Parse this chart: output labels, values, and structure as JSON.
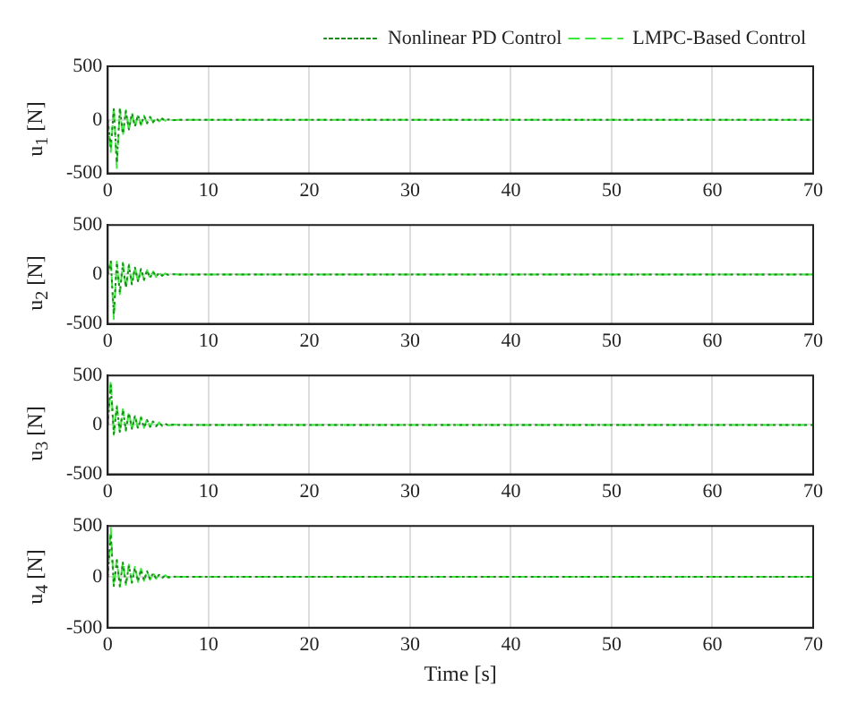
{
  "chart_data": [
    {
      "type": "line",
      "ylabel": "u$_{1}$ [N]",
      "x": [
        0,
        0.3,
        0.6,
        0.9,
        1.2,
        1.5,
        1.8,
        2.1,
        2.4,
        2.7,
        3.0,
        3.3,
        3.6,
        3.9,
        4.2,
        4.5,
        4.8,
        5.1,
        5.4,
        5.7,
        6.0,
        6.5,
        7,
        70
      ],
      "xlim": [
        0,
        70
      ],
      "xticks": [
        0,
        10,
        20,
        30,
        40,
        50,
        60,
        70
      ],
      "ylim": [
        -500,
        500
      ],
      "yticks": [
        -500,
        0,
        500
      ],
      "grid": true,
      "legend": "top right",
      "series": [
        {
          "name": "Nonlinear PD Control",
          "color": "#1a8c1a",
          "line_style": "dotted",
          "values": [
            0,
            -250,
            100,
            -400,
            110,
            -130,
            80,
            -90,
            60,
            -60,
            45,
            -45,
            35,
            -30,
            25,
            -20,
            15,
            -12,
            10,
            -6,
            4,
            -2,
            0,
            0
          ]
        },
        {
          "name": "LMPC-Based Control",
          "color": "#3de83d",
          "line_style": "dashed",
          "values": [
            0,
            -300,
            120,
            -450,
            100,
            -150,
            90,
            -100,
            70,
            -70,
            50,
            -50,
            40,
            -35,
            30,
            -25,
            20,
            -15,
            12,
            -8,
            5,
            -3,
            0,
            0
          ]
        }
      ]
    },
    {
      "type": "line",
      "ylabel": "u$_{2}$ [N]",
      "x": [
        0,
        0.3,
        0.6,
        0.9,
        1.2,
        1.5,
        1.8,
        2.1,
        2.4,
        2.7,
        3.0,
        3.3,
        3.6,
        3.9,
        4.2,
        4.5,
        4.8,
        5.1,
        5.4,
        5.7,
        6.0,
        6.5,
        7,
        70
      ],
      "xlim": [
        0,
        70
      ],
      "xticks": [
        0,
        10,
        20,
        30,
        40,
        50,
        60,
        70
      ],
      "ylim": [
        -500,
        500
      ],
      "yticks": [
        -500,
        0,
        500
      ],
      "grid": true,
      "series": [
        {
          "color": "#1a8c1a",
          "line_style": "dotted",
          "values": [
            0,
            130,
            -400,
            120,
            -180,
            110,
            -130,
            90,
            -100,
            70,
            -70,
            55,
            -50,
            40,
            -35,
            25,
            -20,
            15,
            -12,
            8,
            -5,
            2,
            0,
            0
          ]
        },
        {
          "color": "#3de83d",
          "line_style": "dashed",
          "values": [
            0,
            150,
            -450,
            130,
            -200,
            120,
            -150,
            100,
            -110,
            80,
            -80,
            60,
            -60,
            45,
            -40,
            30,
            -25,
            20,
            -15,
            10,
            -6,
            3,
            0,
            0
          ]
        }
      ]
    },
    {
      "type": "line",
      "ylabel": "u$_{3}$ [N]",
      "x": [
        0,
        0.3,
        0.6,
        0.9,
        1.2,
        1.5,
        1.8,
        2.1,
        2.4,
        2.7,
        3.0,
        3.3,
        3.6,
        3.9,
        4.2,
        4.5,
        4.8,
        5.1,
        5.4,
        5.7,
        6.0,
        6.5,
        7,
        70
      ],
      "xlim": [
        0,
        70
      ],
      "xticks": [
        0,
        10,
        20,
        30,
        40,
        50,
        60,
        70
      ],
      "ylim": [
        -500,
        500
      ],
      "yticks": [
        -500,
        0,
        500
      ],
      "grid": true,
      "series": [
        {
          "color": "#1a8c1a",
          "line_style": "dotted",
          "values": [
            0,
            400,
            -90,
            180,
            -70,
            150,
            -50,
            120,
            -40,
            90,
            -35,
            70,
            -25,
            50,
            -18,
            35,
            -12,
            20,
            -8,
            12,
            -4,
            2,
            0,
            0
          ]
        },
        {
          "color": "#3de83d",
          "line_style": "dashed",
          "values": [
            0,
            450,
            -100,
            200,
            -80,
            160,
            -60,
            130,
            -50,
            100,
            -40,
            80,
            -30,
            60,
            -20,
            40,
            -15,
            25,
            -10,
            15,
            -5,
            3,
            0,
            0
          ]
        }
      ]
    },
    {
      "type": "line",
      "ylabel": "u$_{4}$ [N]",
      "xlabel": "Time [s]",
      "x": [
        0,
        0.3,
        0.6,
        0.9,
        1.2,
        1.5,
        1.8,
        2.1,
        2.4,
        2.7,
        3.0,
        3.3,
        3.6,
        3.9,
        4.2,
        4.5,
        4.8,
        5.1,
        5.4,
        5.7,
        6.0,
        6.5,
        7,
        70
      ],
      "xlim": [
        0,
        70
      ],
      "xticks": [
        0,
        10,
        20,
        30,
        40,
        50,
        60,
        70
      ],
      "ylim": [
        -500,
        500
      ],
      "yticks": [
        -500,
        0,
        500
      ],
      "grid": true,
      "series": [
        {
          "color": "#1a8c1a",
          "line_style": "dotted",
          "values": [
            0,
            420,
            -90,
            160,
            -90,
            140,
            -70,
            110,
            -55,
            90,
            -45,
            70,
            -35,
            55,
            -25,
            35,
            -18,
            20,
            -10,
            12,
            -5,
            2,
            0,
            0
          ]
        },
        {
          "color": "#3de83d",
          "line_style": "dashed",
          "values": [
            0,
            480,
            -100,
            170,
            -100,
            150,
            -80,
            120,
            -60,
            100,
            -50,
            80,
            -40,
            60,
            -30,
            40,
            -20,
            25,
            -12,
            15,
            -6,
            3,
            0,
            0
          ]
        }
      ]
    }
  ]
}
